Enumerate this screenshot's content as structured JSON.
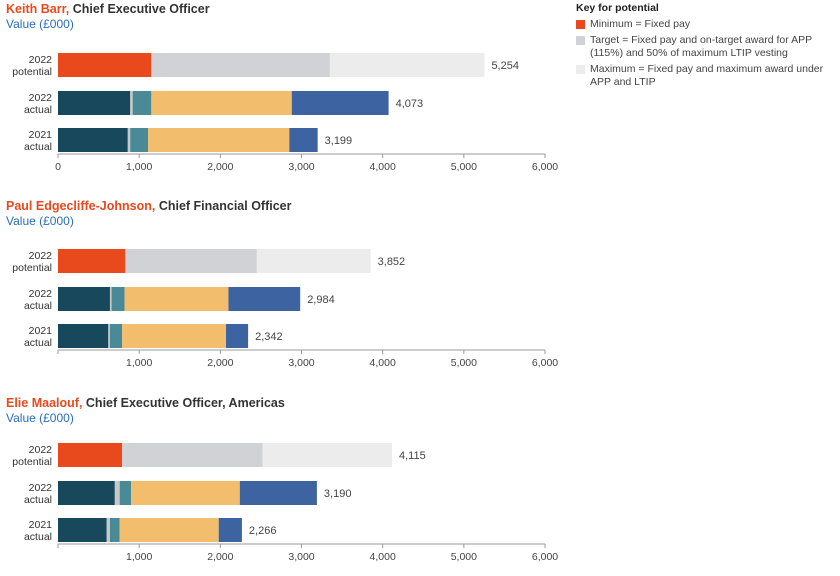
{
  "key": {
    "title": "Key for potential",
    "items": [
      {
        "label": "Minimum = Fixed pay",
        "color": "#e8491d"
      },
      {
        "label": "Target = Fixed pay and on-target award for APP (115%) and 50% of maximum LTIP vesting",
        "color": "#d0d2d5"
      },
      {
        "label": "Maximum = Fixed pay and maximum award under APP and LTIP",
        "color": "#ececec"
      }
    ]
  },
  "colors": {
    "minimum": "#e8491d",
    "target": "#d0d2d5",
    "maximum": "#ececec",
    "salary": "#17485c",
    "benefits": "#c8c8c8",
    "pension": "#4a8a96",
    "app": "#f2bd6c",
    "ltip": "#3d64a0"
  },
  "chart_data": [
    {
      "type": "bar",
      "name": "Keith Barr",
      "role": "Chief Executive Officer",
      "subtitle": "Value (£000)",
      "xlim": [
        0,
        6000
      ],
      "ticks": [
        "0",
        "1,000",
        "2,000",
        "3,000",
        "4,000",
        "5,000",
        "6,000"
      ],
      "rows": [
        {
          "label1": "2022",
          "label2": "potential",
          "total": "5,254",
          "segments": [
            {
              "k": "minimum",
              "v": 1150
            },
            {
              "k": "target",
              "v": 2200
            },
            {
              "k": "maximum",
              "v": 1904
            }
          ]
        },
        {
          "label1": "2022",
          "label2": "actual",
          "total": "4,073",
          "segments": [
            {
              "k": "salary",
              "v": 890
            },
            {
              "k": "benefits",
              "v": 30
            },
            {
              "k": "pension",
              "v": 230
            },
            {
              "k": "app",
              "v": 1730
            },
            {
              "k": "ltip",
              "v": 1193
            }
          ]
        },
        {
          "label1": "2021",
          "label2": "actual",
          "total": "3,199",
          "segments": [
            {
              "k": "salary",
              "v": 860
            },
            {
              "k": "benefits",
              "v": 30
            },
            {
              "k": "pension",
              "v": 220
            },
            {
              "k": "app",
              "v": 1740
            },
            {
              "k": "ltip",
              "v": 349
            }
          ]
        }
      ]
    },
    {
      "type": "bar",
      "name": "Paul Edgecliffe-Johnson",
      "role": "Chief Financial Officer",
      "subtitle": "Value (£000)",
      "xlim": [
        0,
        6000
      ],
      "ticks": [
        "1,000",
        "2,000",
        "3,000",
        "4,000",
        "5,000",
        "6,000"
      ],
      "rows": [
        {
          "label1": "2022",
          "label2": "potential",
          "total": "3,852",
          "segments": [
            {
              "k": "minimum",
              "v": 830
            },
            {
              "k": "target",
              "v": 1620
            },
            {
              "k": "maximum",
              "v": 1402
            }
          ]
        },
        {
          "label1": "2022",
          "label2": "actual",
          "total": "2,984",
          "segments": [
            {
              "k": "salary",
              "v": 640
            },
            {
              "k": "benefits",
              "v": 20
            },
            {
              "k": "pension",
              "v": 160
            },
            {
              "k": "app",
              "v": 1280
            },
            {
              "k": "ltip",
              "v": 884
            }
          ]
        },
        {
          "label1": "2021",
          "label2": "actual",
          "total": "2,342",
          "segments": [
            {
              "k": "salary",
              "v": 620
            },
            {
              "k": "benefits",
              "v": 20
            },
            {
              "k": "pension",
              "v": 150
            },
            {
              "k": "app",
              "v": 1280
            },
            {
              "k": "ltip",
              "v": 272
            }
          ]
        }
      ]
    },
    {
      "type": "bar",
      "name": "Elie Maalouf",
      "role": "Chief Executive Officer, Americas",
      "subtitle": "Value (£000)",
      "xlim": [
        0,
        6000
      ],
      "ticks": [
        "1,000",
        "2,000",
        "3,000",
        "4,000",
        "5,000",
        "6,000"
      ],
      "rows": [
        {
          "label1": "2022",
          "label2": "potential",
          "total": "4,115",
          "segments": [
            {
              "k": "minimum",
              "v": 790
            },
            {
              "k": "target",
              "v": 1730
            },
            {
              "k": "maximum",
              "v": 1595
            }
          ]
        },
        {
          "label1": "2022",
          "label2": "actual",
          "total": "3,190",
          "segments": [
            {
              "k": "salary",
              "v": 700
            },
            {
              "k": "benefits",
              "v": 60
            },
            {
              "k": "pension",
              "v": 140
            },
            {
              "k": "app",
              "v": 1340
            },
            {
              "k": "ltip",
              "v": 950
            }
          ]
        },
        {
          "label1": "2021",
          "label2": "actual",
          "total": "2,266",
          "segments": [
            {
              "k": "salary",
              "v": 600
            },
            {
              "k": "benefits",
              "v": 40
            },
            {
              "k": "pension",
              "v": 120
            },
            {
              "k": "app",
              "v": 1220
            },
            {
              "k": "ltip",
              "v": 286
            }
          ]
        }
      ]
    }
  ]
}
